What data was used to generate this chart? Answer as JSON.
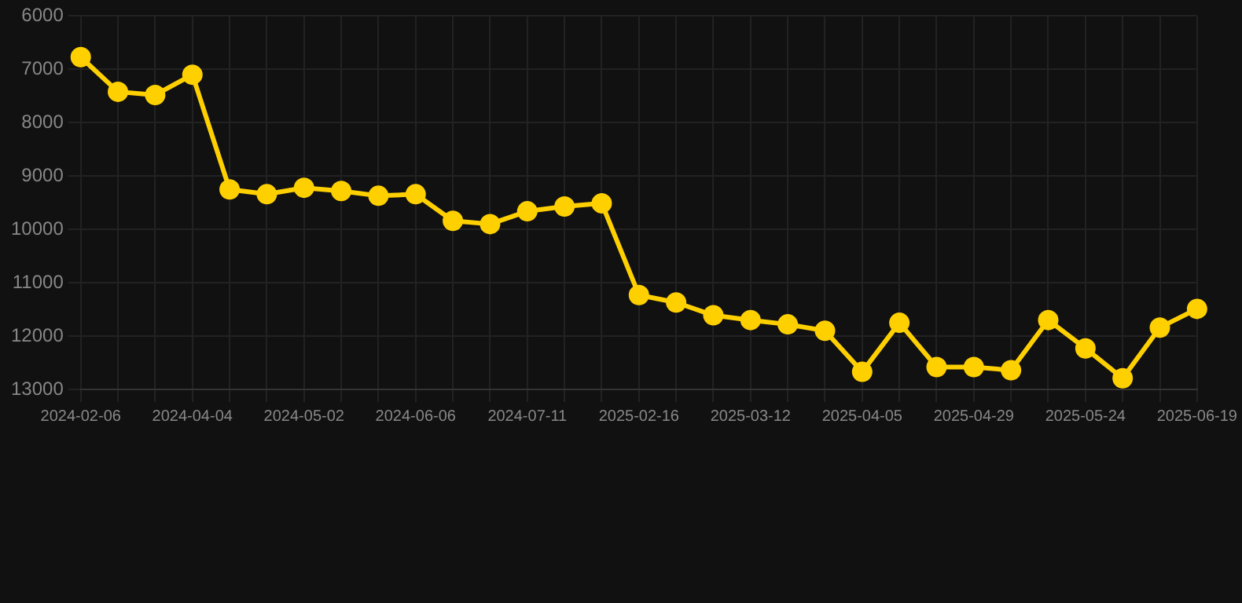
{
  "chart_data": {
    "type": "line",
    "categories": [
      "2024-02-06",
      null,
      null,
      "2024-04-04",
      null,
      null,
      "2024-05-02",
      null,
      null,
      "2024-06-06",
      null,
      null,
      "2024-07-11",
      null,
      null,
      "2025-02-16",
      null,
      null,
      "2025-03-12",
      null,
      null,
      "2025-04-05",
      null,
      null,
      "2025-04-29",
      null,
      null,
      "2025-05-24",
      null,
      null,
      "2025-06-19"
    ],
    "series": [
      {
        "color": "#ffd000",
        "values": [
          6770,
          7420,
          7480,
          7100,
          9250,
          9340,
          9220,
          9280,
          9370,
          9340,
          9840,
          9900,
          9660,
          9570,
          9510,
          11230,
          11370,
          11610,
          11700,
          11780,
          11900,
          12670,
          11750,
          12580,
          12580,
          12640,
          11700,
          12230,
          12790,
          11840,
          11490
        ]
      }
    ],
    "ylim": [
      13000,
      6000
    ],
    "yticks": [
      6000,
      7000,
      8000,
      9000,
      10000,
      11000,
      12000,
      13000
    ],
    "grid": true,
    "marker": "circle",
    "line_style": "solid",
    "legend": false
  }
}
